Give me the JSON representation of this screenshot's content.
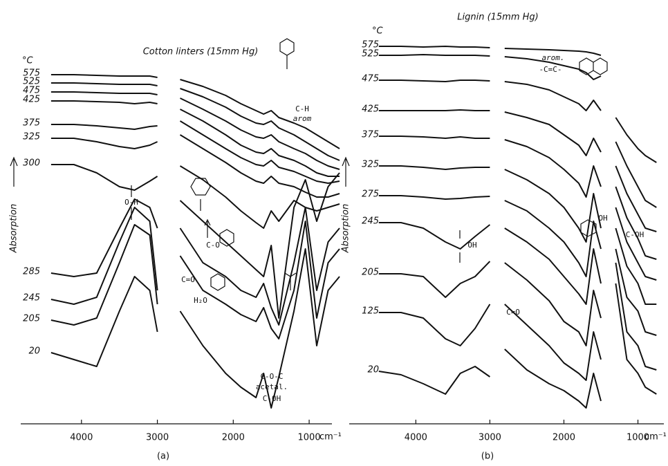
{
  "chart_data": [
    {
      "type": "line",
      "title": "Cotton linters (15mm Hg)",
      "legend_title": "°C",
      "ylabel": "Absorption",
      "xlabel": "cm⁻¹",
      "panel": "(a)",
      "annotations": [
        "O-H",
        "C-O",
        "C=O",
        "H₂O",
        "C-O-C",
        "acetal.",
        "C-OH",
        "C-H",
        "arom"
      ],
      "xlim": [
        4800,
        700
      ],
      "ylim": [
        0,
        560
      ],
      "xticks": [
        4000,
        3000,
        2000,
        1000
      ],
      "x": [
        4400,
        4100,
        3800,
        3500,
        3300,
        3100,
        3000,
        2900,
        2700,
        2400,
        2100,
        1900,
        1700,
        1600,
        1500,
        1400,
        1200,
        1050,
        900,
        750,
        600
      ],
      "series": [
        {
          "name": "575",
          "color": "#111",
          "values": [
            492,
            492,
            491,
            490,
            490,
            490,
            488,
            null,
            485,
            475,
            462,
            450,
            440,
            435,
            440,
            430,
            422,
            415,
            405,
            395,
            385
          ]
        },
        {
          "name": "525",
          "color": "#111",
          "values": [
            480,
            480,
            479,
            478,
            478,
            478,
            476,
            null,
            472,
            460,
            445,
            432,
            422,
            420,
            425,
            415,
            405,
            395,
            385,
            375,
            368
          ]
        },
        {
          "name": "475",
          "color": "#111",
          "values": [
            467,
            467,
            466,
            465,
            465,
            465,
            463,
            null,
            458,
            442,
            425,
            412,
            402,
            400,
            405,
            395,
            385,
            378,
            368,
            360,
            355
          ]
        },
        {
          "name": "425",
          "color": "#111",
          "values": [
            454,
            454,
            453,
            452,
            450,
            452,
            450,
            null,
            442,
            425,
            405,
            390,
            380,
            378,
            385,
            375,
            368,
            360,
            350,
            345,
            345
          ]
        },
        {
          "name": "375",
          "color": "#111",
          "values": [
            420,
            420,
            418,
            415,
            413,
            417,
            418,
            null,
            425,
            405,
            385,
            372,
            362,
            360,
            368,
            358,
            352,
            345,
            338,
            335,
            338
          ]
        },
        {
          "name": "325",
          "color": "#111",
          "values": [
            400,
            400,
            395,
            388,
            385,
            390,
            395,
            null,
            405,
            385,
            365,
            350,
            338,
            335,
            345,
            335,
            330,
            322,
            315,
            315,
            320
          ]
        },
        {
          "name": "300",
          "color": "#111",
          "values": [
            362,
            362,
            350,
            330,
            325,
            338,
            345,
            null,
            360,
            340,
            315,
            295,
            278,
            270,
            295,
            280,
            310,
            300,
            295,
            300,
            305
          ]
        },
        {
          "name": "285",
          "color": "#111",
          "values": [
            205,
            200,
            205,
            270,
            312,
            300,
            270,
            null,
            310,
            280,
            250,
            230,
            210,
            200,
            245,
            140,
            300,
            340,
            280,
            330,
            350
          ]
        },
        {
          "name": "245",
          "color": "#111",
          "values": [
            167,
            160,
            170,
            250,
            300,
            280,
            180,
            null,
            270,
            220,
            200,
            180,
            170,
            190,
            155,
            130,
            220,
            300,
            180,
            250,
            270
          ]
        },
        {
          "name": "205",
          "color": "#111",
          "values": [
            137,
            130,
            140,
            220,
            275,
            260,
            160,
            null,
            230,
            180,
            160,
            145,
            135,
            155,
            125,
            110,
            180,
            280,
            140,
            220,
            240
          ]
        },
        {
          "name": "20",
          "color": "#111",
          "values": [
            90,
            80,
            70,
            150,
            200,
            180,
            120,
            null,
            150,
            100,
            60,
            40,
            25,
            60,
            10,
            55,
            150,
            240,
            100,
            180,
            200
          ]
        }
      ]
    },
    {
      "type": "line",
      "title": "Lignin (15mm Hg)",
      "legend_title": "°C",
      "ylabel": "Absorption",
      "xlabel": "cm⁻¹",
      "panel": "(b)",
      "annotations": [
        "arom.",
        "-C=C-",
        "OH",
        "OH",
        "C-OH",
        "C=O"
      ],
      "xlim": [
        4900,
        650
      ],
      "ylim": [
        0,
        560
      ],
      "xticks": [
        4000,
        3000,
        2000,
        1000
      ],
      "x": [
        4500,
        4200,
        3900,
        3600,
        3400,
        3200,
        3000,
        2900,
        2800,
        2500,
        2200,
        2000,
        1800,
        1700,
        1600,
        1500,
        1400,
        1300,
        1150,
        1000,
        900,
        750
      ],
      "series": [
        {
          "name": "575",
          "color": "#111",
          "values": [
            533,
            533,
            532,
            533,
            532,
            532,
            531,
            null,
            530,
            529,
            528,
            527,
            526,
            525,
            523,
            520,
            null,
            null,
            null,
            null,
            null,
            null
          ]
        },
        {
          "name": "525",
          "color": "#111",
          "values": [
            520,
            520,
            521,
            520,
            520,
            520,
            519,
            null,
            518,
            515,
            510,
            505,
            500,
            495,
            485,
            490,
            null,
            null,
            null,
            null,
            null,
            null
          ]
        },
        {
          "name": "475",
          "color": "#111",
          "values": [
            484,
            484,
            483,
            482,
            484,
            484,
            483,
            null,
            482,
            478,
            470,
            460,
            450,
            440,
            455,
            440,
            null,
            430,
            405,
            385,
            375,
            365
          ]
        },
        {
          "name": "425",
          "color": "#111",
          "values": [
            440,
            440,
            440,
            440,
            441,
            440,
            440,
            null,
            438,
            430,
            420,
            405,
            390,
            375,
            400,
            380,
            null,
            395,
            360,
            330,
            310,
            300
          ]
        },
        {
          "name": "375",
          "color": "#111",
          "values": [
            403,
            403,
            402,
            400,
            402,
            400,
            400,
            null,
            398,
            388,
            372,
            355,
            335,
            315,
            360,
            330,
            null,
            360,
            320,
            290,
            270,
            265
          ]
        },
        {
          "name": "325",
          "color": "#111",
          "values": [
            360,
            360,
            358,
            355,
            357,
            358,
            358,
            null,
            355,
            340,
            320,
            300,
            270,
            250,
            320,
            270,
            null,
            330,
            285,
            255,
            230,
            225
          ]
        },
        {
          "name": "275",
          "color": "#111",
          "values": [
            317,
            317,
            315,
            312,
            313,
            315,
            316,
            null,
            310,
            295,
            270,
            250,
            220,
            200,
            280,
            240,
            null,
            300,
            250,
            220,
            200,
            195
          ]
        },
        {
          "name": "245",
          "color": "#111",
          "values": [
            278,
            278,
            270,
            250,
            240,
            258,
            275,
            null,
            270,
            250,
            225,
            200,
            175,
            160,
            240,
            190,
            null,
            270,
            215,
            190,
            160,
            160
          ]
        },
        {
          "name": "205",
          "color": "#111",
          "values": [
            204,
            204,
            200,
            170,
            190,
            200,
            222,
            null,
            220,
            195,
            165,
            135,
            120,
            100,
            180,
            140,
            null,
            240,
            170,
            150,
            120,
            115
          ]
        },
        {
          "name": "125",
          "color": "#111",
          "values": [
            148,
            148,
            140,
            110,
            100,
            125,
            160,
            null,
            160,
            130,
            100,
            75,
            60,
            50,
            120,
            80,
            null,
            220,
            120,
            100,
            70,
            65
          ]
        },
        {
          "name": "20",
          "color": "#111",
          "values": [
            63,
            58,
            45,
            30,
            60,
            70,
            55,
            null,
            95,
            65,
            45,
            35,
            20,
            10,
            60,
            20,
            null,
            190,
            80,
            60,
            40,
            30
          ]
        }
      ]
    }
  ]
}
